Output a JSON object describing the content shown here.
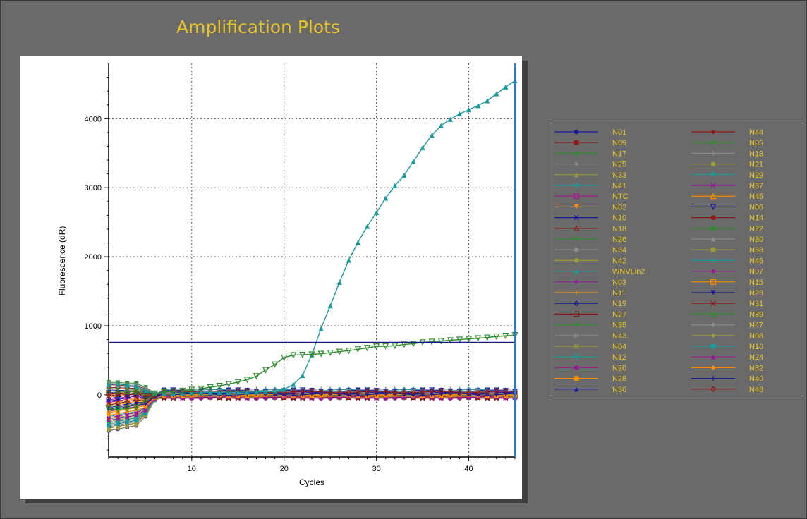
{
  "chart_data": {
    "type": "line",
    "title": "Amplification Plots",
    "xlabel": "Cycles",
    "ylabel": "Fluorescence (dR)",
    "xlim": [
      1,
      45
    ],
    "ylim": [
      -900,
      4800
    ],
    "x_ticks": [
      10,
      20,
      30,
      40
    ],
    "y_ticks": [
      0,
      1000,
      2000,
      3000,
      4000
    ],
    "grid": true,
    "threshold": 760,
    "legend_position": "right",
    "legend_columns": 2,
    "series": [
      {
        "name": "N01",
        "color": "#1a1a9a",
        "marker": "circle"
      },
      {
        "name": "N44",
        "color": "#8b1a1a",
        "marker": "diamond"
      },
      {
        "name": "N09",
        "color": "#8b1a1a",
        "marker": "square"
      },
      {
        "name": "N05",
        "color": "#2e8b2e",
        "marker": "star"
      },
      {
        "name": "N17",
        "color": "#2e8b2e",
        "marker": "triangle"
      },
      {
        "name": "N13",
        "color": "#8a8a8a",
        "marker": "plus"
      },
      {
        "name": "N25",
        "color": "#8a8a8a",
        "marker": "diamond"
      },
      {
        "name": "N21",
        "color": "#9a9a3a",
        "marker": "circle"
      },
      {
        "name": "N33",
        "color": "#9a9a3a",
        "marker": "triangle"
      },
      {
        "name": "N29",
        "color": "#1a9a9a",
        "marker": "triangle-down"
      },
      {
        "name": "N41",
        "color": "#1a9a9a",
        "marker": "diamond-open"
      },
      {
        "name": "N37",
        "color": "#9a1a9a",
        "marker": "x"
      },
      {
        "name": "NTC",
        "color": "#9a1a9a",
        "marker": "square-open"
      },
      {
        "name": "N45",
        "color": "#ff8c00",
        "marker": "triangle-open"
      },
      {
        "name": "N02",
        "color": "#ff8c00",
        "marker": "triangle-down"
      },
      {
        "name": "N06",
        "color": "#1a1a9a",
        "marker": "triangle-down-open"
      },
      {
        "name": "N10",
        "color": "#1a1a9a",
        "marker": "x"
      },
      {
        "name": "N14",
        "color": "#8b1a1a",
        "marker": "circle"
      },
      {
        "name": "N18",
        "color": "#8b1a1a",
        "marker": "triangle-open"
      },
      {
        "name": "N22",
        "color": "#2e8b2e",
        "marker": "square"
      },
      {
        "name": "N26",
        "color": "#2e8b2e",
        "marker": "triangle-down-open"
      },
      {
        "name": "N30",
        "color": "#8a8a8a",
        "marker": "triangle"
      },
      {
        "name": "N34",
        "color": "#8a8a8a",
        "marker": "circle"
      },
      {
        "name": "N38",
        "color": "#9a9a3a",
        "marker": "square"
      },
      {
        "name": "N42",
        "color": "#9a9a3a",
        "marker": "circle"
      },
      {
        "name": "N46",
        "color": "#1a9a9a",
        "marker": "plus"
      },
      {
        "name": "WNVLin2",
        "color": "#1a9a9a",
        "marker": "triangle"
      },
      {
        "name": "N07",
        "color": "#9a1a9a",
        "marker": "diamond"
      },
      {
        "name": "N03",
        "color": "#9a1a9a",
        "marker": "diamond"
      },
      {
        "name": "N15",
        "color": "#ff8c00",
        "marker": "square-open"
      },
      {
        "name": "N11",
        "color": "#ff8c00",
        "marker": "plus"
      },
      {
        "name": "N23",
        "color": "#1a1a9a",
        "marker": "triangle-down"
      },
      {
        "name": "N19",
        "color": "#1a1a9a",
        "marker": "diamond-open"
      },
      {
        "name": "N31",
        "color": "#8b1a1a",
        "marker": "x"
      },
      {
        "name": "N27",
        "color": "#8b1a1a",
        "marker": "square-open"
      },
      {
        "name": "N39",
        "color": "#2e8b2e",
        "marker": "triangle-open"
      },
      {
        "name": "N35",
        "color": "#2e8b2e",
        "marker": "triangle-down"
      },
      {
        "name": "N47",
        "color": "#8a8a8a",
        "marker": "diamond"
      },
      {
        "name": "N43.",
        "color": "#8a8a8a",
        "marker": "x"
      },
      {
        "name": "N08",
        "color": "#9a9a3a",
        "marker": "diamond"
      },
      {
        "name": "N04",
        "color": "#9a9a3a",
        "marker": "x"
      },
      {
        "name": "N16",
        "color": "#1a9a9a",
        "marker": "square"
      },
      {
        "name": "N12",
        "color": "#1a9a9a",
        "marker": "triangle-down-open"
      },
      {
        "name": "N24",
        "color": "#9a1a9a",
        "marker": "triangle"
      },
      {
        "name": "N20",
        "color": "#9a1a9a",
        "marker": "circle"
      },
      {
        "name": "N32",
        "color": "#ff8c00",
        "marker": "diamond"
      },
      {
        "name": "N28",
        "color": "#ff8c00",
        "marker": "square"
      },
      {
        "name": "N40",
        "color": "#1a1a9a",
        "marker": "plus"
      },
      {
        "name": "N36",
        "color": "#1a1a9a",
        "marker": "triangle"
      },
      {
        "name": "N48",
        "color": "#8b1a1a",
        "marker": "diamond-open"
      }
    ],
    "highlight_curves": [
      {
        "name": "WNVLin2",
        "x": [
          1,
          2,
          3,
          4,
          5,
          6,
          7,
          8,
          9,
          10,
          11,
          12,
          13,
          14,
          15,
          16,
          17,
          18,
          19,
          20,
          21,
          22,
          23,
          24,
          25,
          26,
          27,
          28,
          29,
          30,
          31,
          32,
          33,
          34,
          35,
          36,
          37,
          38,
          39,
          40,
          41,
          42,
          43,
          44,
          45
        ],
        "y": [
          150,
          160,
          140,
          120,
          60,
          20,
          20,
          25,
          25,
          30,
          30,
          35,
          35,
          35,
          40,
          40,
          40,
          45,
          50,
          80,
          150,
          280,
          580,
          960,
          1290,
          1630,
          1950,
          2210,
          2440,
          2640,
          2850,
          3030,
          3180,
          3380,
          3580,
          3760,
          3900,
          3990,
          4070,
          4130,
          4190,
          4260,
          4360,
          4460,
          4550
        ]
      },
      {
        "name": "N26",
        "x": [
          1,
          2,
          3,
          4,
          5,
          6,
          7,
          8,
          9,
          10,
          11,
          12,
          13,
          14,
          15,
          16,
          17,
          18,
          19,
          20,
          21,
          22,
          23,
          24,
          25,
          26,
          27,
          28,
          29,
          30,
          31,
          32,
          33,
          34,
          35,
          36,
          37,
          38,
          39,
          40,
          41,
          42,
          43,
          44,
          45
        ],
        "y": [
          -200,
          -210,
          -200,
          -180,
          -80,
          20,
          40,
          50,
          60,
          75,
          90,
          110,
          130,
          155,
          185,
          220,
          270,
          360,
          440,
          540,
          575,
          580,
          585,
          595,
          610,
          625,
          640,
          660,
          680,
          700,
          705,
          710,
          730,
          740,
          760,
          770,
          780,
          790,
          800,
          810,
          820,
          830,
          845,
          855,
          865
        ]
      }
    ]
  }
}
